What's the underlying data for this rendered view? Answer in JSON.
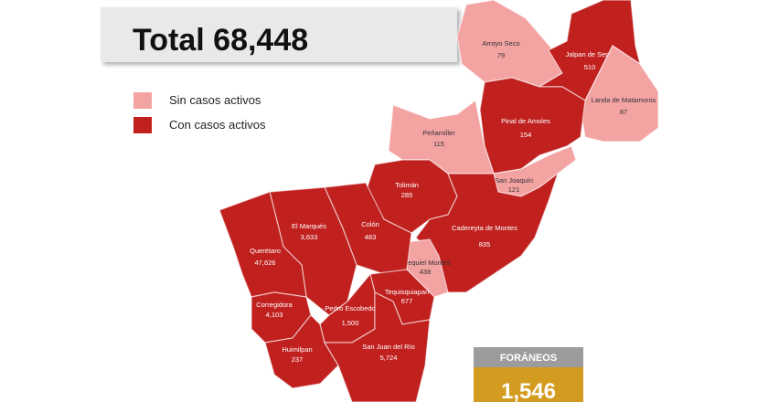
{
  "header": {
    "label": "Total",
    "value": "68,448"
  },
  "regions": [
    {
      "label": "Sin casos activos",
      "color": "#f4a3a3",
      "municipalities": [
        {
          "name": "Arroyo Seco",
          "value": "79"
        },
        {
          "name": "Landa de Matamoros",
          "value": "87"
        },
        {
          "name": "Peñamiller",
          "value": "115"
        },
        {
          "name": "San Joaquín",
          "value": "121"
        },
        {
          "name": "Ezequiel Montes",
          "value": "438"
        }
      ]
    },
    {
      "label": "Con casos activos",
      "color": "#c0211f",
      "municipalities": [
        {
          "name": "Jalpan de Serra",
          "value": "510"
        },
        {
          "name": "Pinal de Amoles",
          "value": "154"
        },
        {
          "name": "Tolimán",
          "value": "285"
        },
        {
          "name": "Cadereyta de Montes",
          "value": "835"
        },
        {
          "name": "El Marqués",
          "value": "3,633"
        },
        {
          "name": "Colón",
          "value": "483"
        },
        {
          "name": "Querétaro",
          "value": "47,626"
        },
        {
          "name": "Corregidora",
          "value": "4,103"
        },
        {
          "name": "Tequisquiapan",
          "value": "677"
        },
        {
          "name": "Pedro Escobedo",
          "value": "1,500"
        },
        {
          "name": "Huimilpan",
          "value": "237"
        },
        {
          "name": "San Juan del Río",
          "value": "5,724"
        }
      ]
    }
  ],
  "foraneos": {
    "label": "FORÁNEOS",
    "value": "1,546"
  }
}
